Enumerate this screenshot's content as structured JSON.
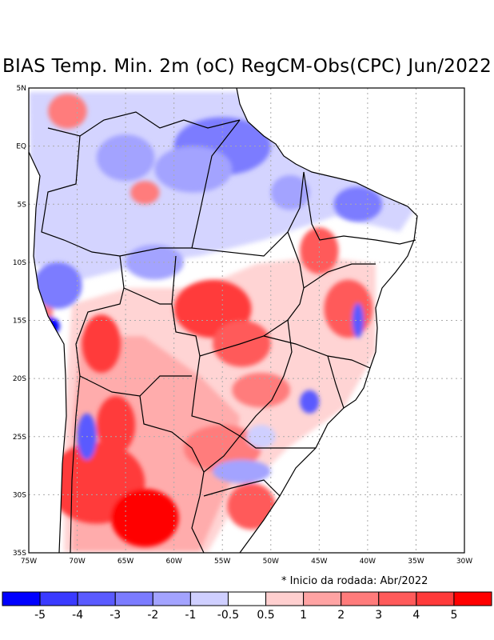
{
  "title": "BIAS Temp. Min. 2m (oC) RegCM-Obs(CPC) Jun/2022",
  "note": "* Inicio da rodada: Abr/2022",
  "map": {
    "lon_range": [
      -75,
      -30
    ],
    "lat_range": [
      -35,
      5
    ],
    "lon_ticks": [
      "75W",
      "70W",
      "65W",
      "60W",
      "55W",
      "50W",
      "45W",
      "40W",
      "35W",
      "30W"
    ],
    "lat_ticks": [
      "5N",
      "EQ",
      "5S",
      "10S",
      "15S",
      "20S",
      "25S",
      "30S",
      "35S"
    ]
  },
  "legend": {
    "colors": [
      "#0000ff",
      "#3a3aff",
      "#5a5aff",
      "#7b7bff",
      "#a3a3ff",
      "#cfcfff",
      "#ffffff",
      "#ffcfcf",
      "#ffa3a3",
      "#ff7b7b",
      "#ff5a5a",
      "#ff3a3a",
      "#ff0000"
    ],
    "labels": [
      "-5",
      "-4",
      "-3",
      "-2",
      "-1",
      "-0.5",
      "0.5",
      "1",
      "2",
      "3",
      "4",
      "5"
    ]
  },
  "regions": [
    {
      "lon": -68,
      "lat": -29,
      "rx": 5,
      "ry": 3.5,
      "level": 5
    },
    {
      "lon": -63,
      "lat": -32,
      "rx": 3.5,
      "ry": 2.5,
      "level": 6
    },
    {
      "lon": -66,
      "lat": -24,
      "rx": 2,
      "ry": 2.5,
      "level": 5
    },
    {
      "lon": -67.5,
      "lat": -17,
      "rx": 2,
      "ry": 2.5,
      "level": 5
    },
    {
      "lon": -56,
      "lat": -14,
      "rx": 4,
      "ry": 2.5,
      "level": 5
    },
    {
      "lon": -53,
      "lat": -17,
      "rx": 3,
      "ry": 2,
      "level": 4
    },
    {
      "lon": -45,
      "lat": -9,
      "rx": 2,
      "ry": 2,
      "level": 4
    },
    {
      "lon": -42,
      "lat": -14,
      "rx": 2.5,
      "ry": 2.5,
      "level": 4
    },
    {
      "lon": -51,
      "lat": -21,
      "rx": 3,
      "ry": 1.5,
      "level": 3
    },
    {
      "lon": -55,
      "lat": -26,
      "rx": 4,
      "ry": 2,
      "level": 3
    },
    {
      "lon": -52,
      "lat": -31,
      "rx": 2.5,
      "ry": 2,
      "level": 4
    },
    {
      "lon": -74,
      "lat": -14,
      "rx": 1.5,
      "ry": 2,
      "level": 3
    },
    {
      "lon": -71,
      "lat": 3,
      "rx": 2,
      "ry": 1.5,
      "level": 3
    },
    {
      "lon": -63,
      "lat": -4,
      "rx": 1.5,
      "ry": 1,
      "level": 3
    },
    {
      "lon": -55,
      "lat": 0,
      "rx": 5,
      "ry": 2.5,
      "level": -3
    },
    {
      "lon": -65,
      "lat": -1,
      "rx": 3,
      "ry": 2,
      "level": -2
    },
    {
      "lon": -58,
      "lat": -2,
      "rx": 4,
      "ry": 2,
      "level": -2
    },
    {
      "lon": -62,
      "lat": -10,
      "rx": 3,
      "ry": 1.5,
      "level": -2
    },
    {
      "lon": -72,
      "lat": -12,
      "rx": 2.5,
      "ry": 2,
      "level": -3
    },
    {
      "lon": -73,
      "lat": -15.5,
      "rx": 1.2,
      "ry": 0.8,
      "level": -6
    },
    {
      "lon": -69,
      "lat": -25,
      "rx": 1,
      "ry": 2,
      "level": -4
    },
    {
      "lon": -46,
      "lat": -22,
      "rx": 1,
      "ry": 1,
      "level": -4
    },
    {
      "lon": -41,
      "lat": -15,
      "rx": 0.6,
      "ry": 1.5,
      "level": -4
    },
    {
      "lon": -41,
      "lat": -5,
      "rx": 2.5,
      "ry": 1.5,
      "level": -3
    },
    {
      "lon": -48,
      "lat": -4,
      "rx": 2,
      "ry": 1.5,
      "level": -2
    },
    {
      "lon": -53,
      "lat": -28,
      "rx": 3,
      "ry": 1,
      "level": -2
    },
    {
      "lon": -51,
      "lat": -25,
      "rx": 1.5,
      "ry": 1,
      "level": -1
    }
  ]
}
